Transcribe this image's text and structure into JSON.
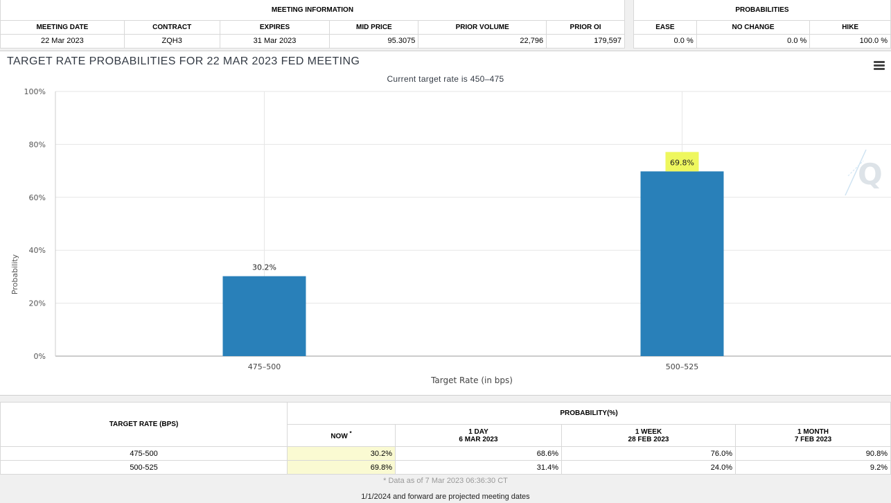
{
  "meeting_info": {
    "group_label": "MEETING INFORMATION",
    "headers": [
      "MEETING DATE",
      "CONTRACT",
      "EXPIRES",
      "MID PRICE",
      "PRIOR VOLUME",
      "PRIOR OI"
    ],
    "row": [
      "22 Mar 2023",
      "ZQH3",
      "31 Mar 2023",
      "95.3075",
      "22,796",
      "179,597"
    ]
  },
  "probabilities": {
    "group_label": "PROBABILITIES",
    "headers": [
      "EASE",
      "NO CHANGE",
      "HIKE"
    ],
    "row": [
      "0.0 %",
      "0.0 %",
      "100.0 %"
    ]
  },
  "chart_data": {
    "type": "bar",
    "title": "TARGET RATE PROBABILITIES FOR 22 MAR 2023 FED MEETING",
    "subtitle": "Current target rate is 450–475",
    "xlabel": "Target Rate (in bps)",
    "ylabel": "Probability",
    "categories": [
      "475–500",
      "500–525"
    ],
    "values": [
      30.2,
      69.8
    ],
    "data_labels": [
      "30.2%",
      "69.8%"
    ],
    "highlighted_label_index": 1,
    "ylim": [
      0,
      100
    ],
    "yticks": [
      0,
      20,
      40,
      60,
      80,
      100
    ],
    "ytick_labels": [
      "0%",
      "20%",
      "40%",
      "60%",
      "80%",
      "100%"
    ],
    "grid": true,
    "bar_color": "#2980b9",
    "highlight_color": "#eef75e"
  },
  "rate_table": {
    "target_rate_header": "TARGET RATE (BPS)",
    "probability_header": "PROBABILITY(%)",
    "columns": [
      {
        "line1": "NOW",
        "marker": "*",
        "line2": ""
      },
      {
        "line1": "1 DAY",
        "line2": "6 MAR 2023"
      },
      {
        "line1": "1 WEEK",
        "line2": "28 FEB 2023"
      },
      {
        "line1": "1 MONTH",
        "line2": "7 FEB 2023"
      }
    ],
    "rows": [
      {
        "rate": "475-500",
        "values": [
          "30.2%",
          "68.6%",
          "76.0%",
          "90.8%"
        ]
      },
      {
        "rate": "500-525",
        "values": [
          "69.8%",
          "31.4%",
          "24.0%",
          "9.2%"
        ]
      }
    ]
  },
  "footnotes": {
    "data_asof": "* Data as of 7 Mar 2023 06:36:30 CT",
    "projected": "1/1/2024 and forward are projected meeting dates"
  },
  "icons": {
    "menu": "hamburger-menu-icon",
    "watermark": "q-logo-icon"
  }
}
